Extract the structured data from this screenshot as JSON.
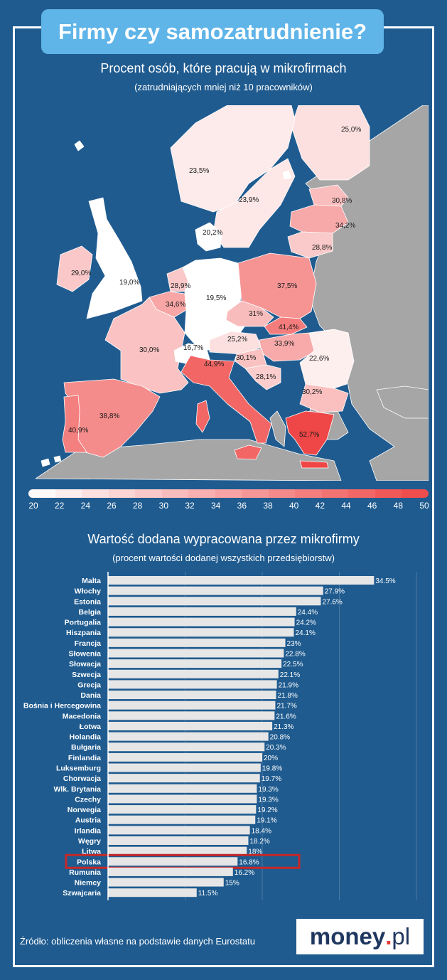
{
  "title": "Firmy czy samozatrudnienie?",
  "map_section": {
    "title": "Procent osób, które pracują w mikrofirmach",
    "subtitle": "(zatrudniających mniej niż 10 pracowników)"
  },
  "bar_section": {
    "title": "Wartość dodana wypracowana przez mikrofirmy",
    "subtitle": "(procent wartości dodanej wszystkich przedsiębiorstw)"
  },
  "source": "Źródło: obliczenia własne na podstawie danych Eurostatu",
  "logo": {
    "brand": "money",
    "dot": ".",
    "tld": "pl"
  },
  "colors": {
    "background": "#1f5b8f",
    "accent": "#5fb4e8",
    "bar": "#e6e6e6",
    "highlight": "#c62828",
    "low": "#ffffff",
    "high": "#ef4747",
    "nodata": "#a6a6a6"
  },
  "chart_data": [
    {
      "type": "choropleth",
      "title": "Procent osób, które pracują w mikrofirmach",
      "subtitle": "(zatrudniających mniej niż 10 pracowników)",
      "scale": {
        "min": 20,
        "max": 50,
        "ticks": [
          20,
          22,
          24,
          26,
          28,
          30,
          32,
          34,
          36,
          38,
          40,
          42,
          44,
          46,
          48,
          50
        ]
      },
      "regions": [
        {
          "name": "Finlandia",
          "label": "25,0%",
          "value": 25.0
        },
        {
          "name": "Szwecja (północ)",
          "label": "23,5%",
          "value": 23.5
        },
        {
          "name": "Szwecja (południe)",
          "label": "23,9%",
          "value": 23.9
        },
        {
          "name": "Dania",
          "label": "20,2%",
          "value": 20.2
        },
        {
          "name": "Estonia",
          "label": "30,8%",
          "value": 30.8
        },
        {
          "name": "Łotwa",
          "label": "34,2%",
          "value": 34.2
        },
        {
          "name": "Litwa",
          "label": "28,8%",
          "value": 28.8
        },
        {
          "name": "Irlandia",
          "label": "29,0%",
          "value": 29.0
        },
        {
          "name": "Wlk. Brytania",
          "label": "19,0%",
          "value": 19.0
        },
        {
          "name": "Holandia",
          "label": "28,9%",
          "value": 28.9
        },
        {
          "name": "Belgia",
          "label": "34,6%",
          "value": 34.6
        },
        {
          "name": "Niemcy",
          "label": "19,5%",
          "value": 19.5
        },
        {
          "name": "Polska",
          "label": "37,5%",
          "value": 37.5
        },
        {
          "name": "Czechy",
          "label": "31%",
          "value": 31.0
        },
        {
          "name": "Słowacja",
          "label": "41,4%",
          "value": 41.4
        },
        {
          "name": "Francja",
          "label": "30,0%",
          "value": 30.0
        },
        {
          "name": "Szwajcaria",
          "label": "16,7%",
          "value": 16.7
        },
        {
          "name": "Austria",
          "label": "25,2%",
          "value": 25.2
        },
        {
          "name": "Węgry",
          "label": "33,9%",
          "value": 33.9
        },
        {
          "name": "Rumunia",
          "label": "22,6%",
          "value": 22.6
        },
        {
          "name": "Słowenia",
          "label": "30,1%",
          "value": 30.1
        },
        {
          "name": "Chorwacja",
          "label": "28,1%",
          "value": 28.1
        },
        {
          "name": "Bułgaria",
          "label": "30,2%",
          "value": 30.2
        },
        {
          "name": "Włochy",
          "label": "44,9%",
          "value": 44.9
        },
        {
          "name": "Grecja",
          "label": "52,7%",
          "value": 52.7
        },
        {
          "name": "Hiszpania",
          "label": "38,8%",
          "value": 38.8
        },
        {
          "name": "Portugalia",
          "label": "40,9%",
          "value": 40.9
        }
      ]
    },
    {
      "type": "bar",
      "orientation": "horizontal",
      "title": "Wartość dodana wypracowana przez mikrofirmy",
      "subtitle": "(procent wartości dodanej wszystkich przedsiębiorstw)",
      "highlight": "Polska",
      "xlim": [
        0,
        40
      ],
      "categories": [
        "Malta",
        "Włochy",
        "Estonia",
        "Belgia",
        "Portugalia",
        "Hiszpania",
        "Francja",
        "Słowenia",
        "Słowacja",
        "Szwecja",
        "Grecja",
        "Dania",
        "Bośnia i Hercegowina",
        "Macedonia",
        "Łotwa",
        "Holandia",
        "Bułgaria",
        "Finlandia",
        "Luksemburg",
        "Chorwacja",
        "Wlk. Brytania",
        "Czechy",
        "Norwegia",
        "Austria",
        "Irlandia",
        "Węgry",
        "Litwa",
        "Polska",
        "Rumunia",
        "Niemcy",
        "Szwajcaria"
      ],
      "values": [
        34.5,
        27.9,
        27.6,
        24.4,
        24.2,
        24.1,
        23,
        22.8,
        22.5,
        22.1,
        21.9,
        21.8,
        21.7,
        21.6,
        21.3,
        20.8,
        20.3,
        20,
        19.8,
        19.7,
        19.3,
        19.3,
        19.2,
        19.1,
        18.4,
        18.2,
        18,
        16.8,
        16.2,
        15,
        11.5
      ],
      "labels": [
        "34.5%",
        "27.9%",
        "27.6%",
        "24.4%",
        "24.2%",
        "24.1%",
        "23%",
        "22.8%",
        "22.5%",
        "22.1%",
        "21.9%",
        "21.8%",
        "21.7%",
        "21.6%",
        "21.3%",
        "20.8%",
        "20.3%",
        "20%",
        "19.8%",
        "19.7%",
        "19.3%",
        "19.3%",
        "19.2%",
        "19.1%",
        "18.4%",
        "18.2%",
        "18%",
        "16.8%",
        "16.2%",
        "15%",
        "11.5%"
      ]
    }
  ]
}
